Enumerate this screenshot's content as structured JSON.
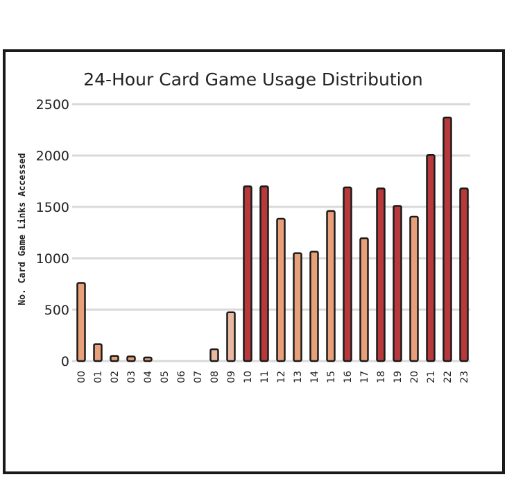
{
  "chart_data": {
    "type": "bar",
    "title": "24-Hour Card Game Usage Distribution",
    "ylabel": "No. Card Game Links Accessed",
    "xlabel": "",
    "ylim": [
      0,
      2500
    ],
    "yticks": [
      0,
      500,
      1000,
      1500,
      2000,
      2500
    ],
    "grid": true,
    "categories": [
      "00",
      "01",
      "02",
      "03",
      "04",
      "05",
      "06",
      "07",
      "08",
      "09",
      "10",
      "11",
      "12",
      "13",
      "14",
      "15",
      "16",
      "17",
      "18",
      "19",
      "20",
      "21",
      "22",
      "23"
    ],
    "values": [
      760,
      165,
      50,
      45,
      35,
      0,
      0,
      0,
      115,
      475,
      1700,
      1700,
      1385,
      1050,
      1065,
      1460,
      1690,
      1195,
      1680,
      1510,
      1405,
      2005,
      2370,
      1680
    ],
    "colors": {
      "high": "#b8393c",
      "medium": "#e8a07a",
      "low": "#e9b8a3",
      "outline": "#1a1a1a",
      "grid": "#d9d9d9",
      "frame": "#1a1a1a"
    }
  }
}
